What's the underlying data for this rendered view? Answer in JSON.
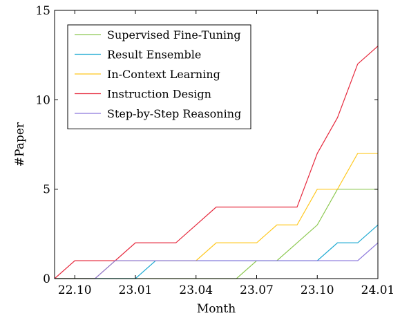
{
  "chart_data": {
    "type": "line",
    "xlabel": "Month",
    "ylabel": "#Paper",
    "x": [
      "22.09",
      "22.10",
      "22.11",
      "22.12",
      "23.01",
      "23.02",
      "23.03",
      "23.04",
      "23.05",
      "23.06",
      "23.07",
      "23.08",
      "23.09",
      "23.10",
      "23.11",
      "23.12",
      "24.01"
    ],
    "x_tick_labels": [
      "22.10",
      "23.01",
      "23.04",
      "23.07",
      "23.10",
      "24.01"
    ],
    "ylim": [
      0,
      15
    ],
    "y_ticks": [
      0,
      5,
      10,
      15
    ],
    "legend_position": "top-left",
    "grid": false,
    "series": [
      {
        "name": "Supervised Fine-Tuning",
        "color": "#8cc850",
        "values": [
          0,
          0,
          0,
          0,
          0,
          0,
          0,
          0,
          0,
          0,
          1,
          1,
          2,
          3,
          5,
          5,
          5
        ]
      },
      {
        "name": "Result Ensemble",
        "color": "#1eaad2",
        "values": [
          0,
          0,
          0,
          0,
          0,
          1,
          1,
          1,
          1,
          1,
          1,
          1,
          1,
          1,
          2,
          2,
          3
        ]
      },
      {
        "name": "In-Context Learning",
        "color": "#ffc81e",
        "values": [
          0,
          0,
          0,
          1,
          1,
          1,
          1,
          1,
          2,
          2,
          2,
          3,
          3,
          5,
          5,
          7,
          7
        ]
      },
      {
        "name": "Instruction Design",
        "color": "#e6283c",
        "values": [
          0,
          1,
          1,
          1,
          2,
          2,
          2,
          3,
          4,
          4,
          4,
          4,
          4,
          7,
          9,
          12,
          13
        ]
      },
      {
        "name": "Step-by-Step Reasoning",
        "color": "#8c78dc",
        "values": [
          0,
          0,
          0,
          1,
          1,
          1,
          1,
          1,
          1,
          1,
          1,
          1,
          1,
          1,
          1,
          1,
          2
        ]
      }
    ]
  }
}
